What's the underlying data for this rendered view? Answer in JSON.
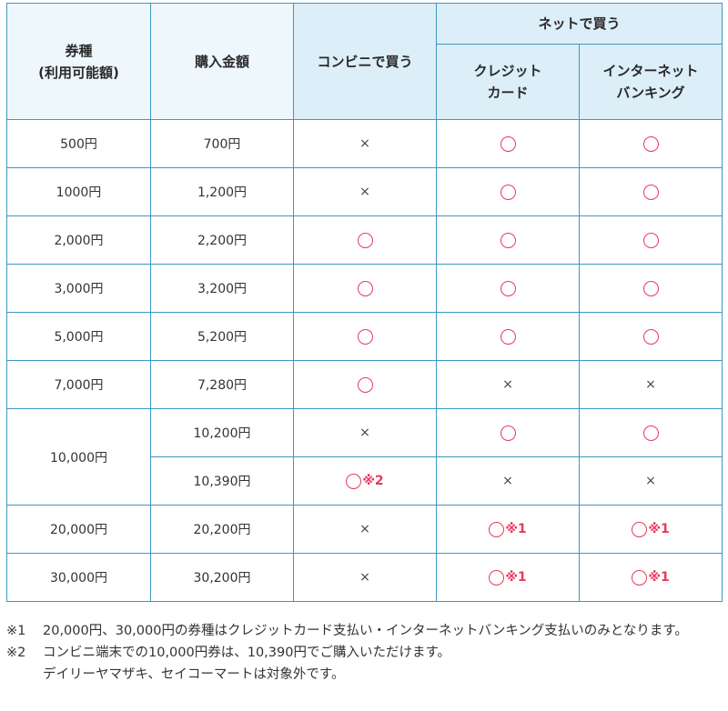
{
  "headers": {
    "col1_line1": "券種",
    "col1_line2": "(利用可能額)",
    "col2": "購入金額",
    "col3": "コンビニで買う",
    "net_group": "ネットで買う",
    "col4_line1": "クレジット",
    "col4_line2": "カード",
    "col5_line1": "インターネット",
    "col5_line2": "バンキング"
  },
  "symbols": {
    "yes": "◯",
    "no": "×",
    "note1": "※1",
    "note2": "※2"
  },
  "rows": [
    {
      "type": "500円",
      "price": "700円",
      "konbini": "no",
      "credit": "yes",
      "banking": "yes"
    },
    {
      "type": "1000円",
      "price": "1,200円",
      "konbini": "no",
      "credit": "yes",
      "banking": "yes"
    },
    {
      "type": "2,000円",
      "price": "2,200円",
      "konbini": "yes",
      "credit": "yes",
      "banking": "yes"
    },
    {
      "type": "3,000円",
      "price": "3,200円",
      "konbini": "yes",
      "credit": "yes",
      "banking": "yes"
    },
    {
      "type": "5,000円",
      "price": "5,200円",
      "konbini": "yes",
      "credit": "yes",
      "banking": "yes"
    },
    {
      "type": "7,000円",
      "price": "7,280円",
      "konbini": "yes",
      "credit": "no",
      "banking": "no"
    },
    {
      "type": "10,000円",
      "price": "10,200円",
      "konbini": "no",
      "credit": "yes",
      "banking": "yes"
    },
    {
      "price": "10,390円",
      "konbini": "yes",
      "konbini_note": "※2",
      "credit": "no",
      "banking": "no"
    },
    {
      "type": "20,000円",
      "price": "20,200円",
      "konbini": "no",
      "credit": "yes",
      "credit_note": "※1",
      "banking": "yes",
      "banking_note": "※1"
    },
    {
      "type": "30,000円",
      "price": "30,200円",
      "konbini": "no",
      "credit": "yes",
      "credit_note": "※1",
      "banking": "yes",
      "banking_note": "※1"
    }
  ],
  "footnotes": [
    {
      "mark": "※1",
      "lines": [
        "20,000円、30,000円の券種はクレジットカード支払い・インターネットバンキング支払いのみとなります。"
      ]
    },
    {
      "mark": "※2",
      "lines": [
        "コンビニ端末での10,000円券は、10,390円でご購入いただけます。",
        "デイリーヤマザキ、セイコーマートは対象外です。"
      ]
    }
  ],
  "colors": {
    "border": "#3c98c2",
    "header_bg": "#dceef7",
    "header_bg_light": "#eef7fb",
    "maru": "#e8385e"
  }
}
